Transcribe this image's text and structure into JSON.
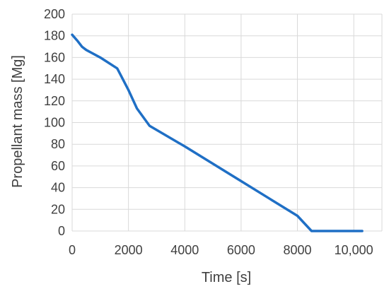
{
  "chart_data": {
    "type": "line",
    "title": "",
    "xlabel": "Time [s]",
    "ylabel": "Propellant mass [Mg]",
    "xlim": [
      0,
      11000
    ],
    "ylim": [
      0,
      200
    ],
    "x_ticks": [
      0,
      2000,
      4000,
      6000,
      8000,
      10000
    ],
    "x_tick_labels": [
      "0",
      "2000",
      "4000",
      "6000",
      "8000",
      "10,000"
    ],
    "y_ticks": [
      0,
      20,
      40,
      60,
      80,
      100,
      120,
      140,
      160,
      180,
      200
    ],
    "y_tick_labels": [
      "0",
      "20",
      "40",
      "60",
      "80",
      "100",
      "120",
      "140",
      "160",
      "180",
      "200"
    ],
    "grid": "vertical",
    "legend": "none",
    "series": [
      {
        "color": "#1f6fc5",
        "x": [
          0,
          200,
          350,
          500,
          1000,
          1600,
          1700,
          2000,
          2300,
          2750,
          4000,
          6000,
          8000,
          8500,
          10300
        ],
        "y": [
          181,
          175,
          170,
          167,
          160,
          150,
          145,
          130,
          113,
          97,
          78,
          46,
          14,
          0,
          0
        ]
      }
    ]
  }
}
